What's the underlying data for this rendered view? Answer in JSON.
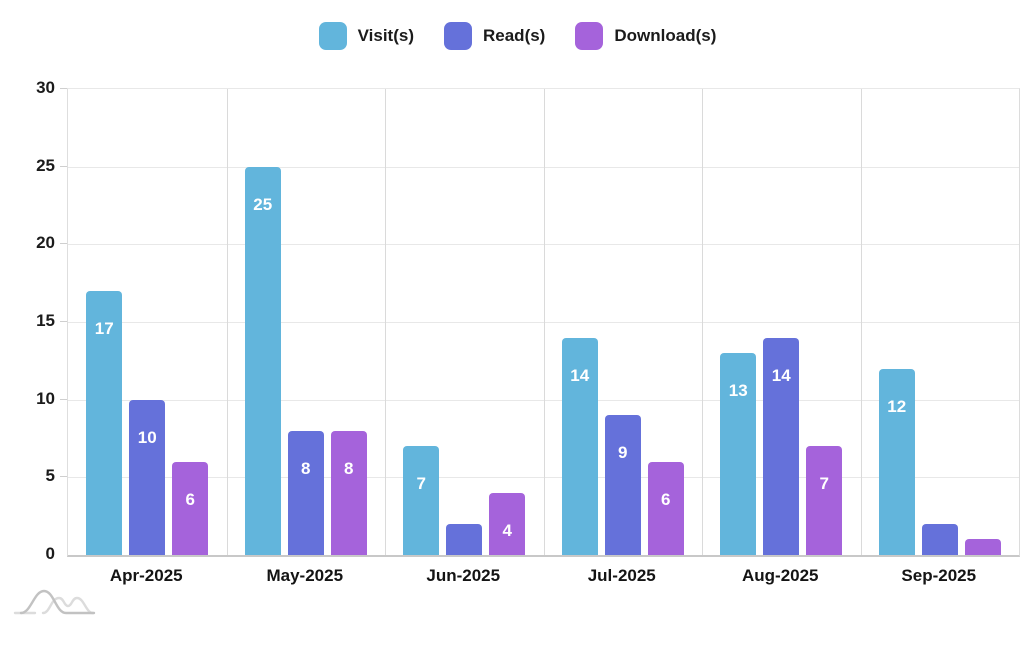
{
  "chart_data": {
    "type": "bar",
    "title": "",
    "categories": [
      "Apr-2025",
      "May-2025",
      "Jun-2025",
      "Jul-2025",
      "Aug-2025",
      "Sep-2025"
    ],
    "series": [
      {
        "name": "Visit(s)",
        "color": "#62B5DC",
        "values": [
          17,
          25,
          7,
          14,
          13,
          12
        ]
      },
      {
        "name": "Read(s)",
        "color": "#6571DA",
        "values": [
          10,
          8,
          2,
          9,
          14,
          2
        ]
      },
      {
        "name": "Download(s)",
        "color": "#A563DB",
        "values": [
          6,
          8,
          4,
          6,
          7,
          1
        ]
      }
    ],
    "xlabel": "",
    "ylabel": "",
    "ylim": [
      0,
      30
    ],
    "yticks": [
      0,
      5,
      10,
      15,
      20,
      25,
      30
    ],
    "grid": true,
    "legend_position": "top",
    "bar_value_labels": true,
    "bar_label_color": "#ffffff",
    "axis_text_color": "#1b1b1b",
    "gridline_color": "#e8e8e8"
  }
}
